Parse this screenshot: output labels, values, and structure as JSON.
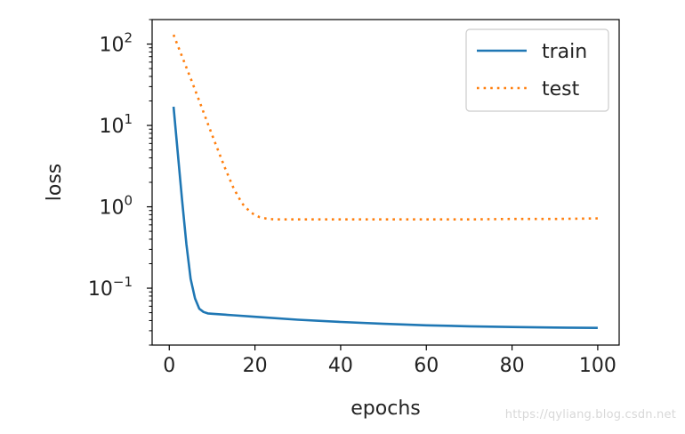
{
  "chart_data": {
    "type": "line",
    "xlabel": "epochs",
    "ylabel": "loss",
    "yscale": "log",
    "xlim": [
      -4,
      105
    ],
    "ylim": [
      0.02,
      200
    ],
    "xticks": [
      0,
      20,
      40,
      60,
      80,
      100
    ],
    "xtick_labels": [
      "0",
      "20",
      "40",
      "60",
      "80",
      "100"
    ],
    "yticks": [
      0.1,
      1,
      10,
      100
    ],
    "ytick_labels": [
      {
        "base": "10",
        "exp": "−1"
      },
      {
        "base": "10",
        "exp": "0"
      },
      {
        "base": "10",
        "exp": "1"
      },
      {
        "base": "10",
        "exp": "2"
      }
    ],
    "grid": false,
    "legend_position": "top-right",
    "series": [
      {
        "name": "train",
        "style": "solid",
        "color": "#1f77b4",
        "x": [
          1,
          2,
          3,
          4,
          5,
          6,
          7,
          8,
          9,
          10,
          15,
          20,
          30,
          40,
          50,
          60,
          70,
          80,
          90,
          100
        ],
        "y": [
          17,
          4.5,
          1.2,
          0.35,
          0.13,
          0.075,
          0.056,
          0.051,
          0.049,
          0.0485,
          0.0465,
          0.0445,
          0.041,
          0.0385,
          0.0365,
          0.035,
          0.034,
          0.0333,
          0.0328,
          0.0325
        ]
      },
      {
        "name": "test",
        "style": "dotted",
        "color": "#ff7f0e",
        "x": [
          1,
          3,
          5,
          7,
          9,
          11,
          13,
          15,
          17,
          19,
          21,
          23,
          25,
          30,
          40,
          50,
          60,
          70,
          80,
          90,
          100
        ],
        "y": [
          130,
          70,
          38,
          20,
          10.5,
          5.6,
          3.0,
          1.7,
          1.1,
          0.85,
          0.75,
          0.71,
          0.7,
          0.7,
          0.7,
          0.7,
          0.7,
          0.7,
          0.71,
          0.71,
          0.72
        ]
      }
    ]
  },
  "watermark": "https://qyliang.blog.csdn.net"
}
